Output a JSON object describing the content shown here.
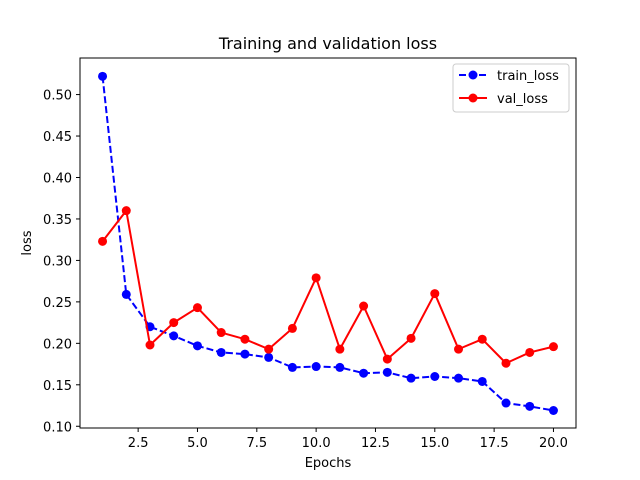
{
  "chart_data": {
    "type": "line",
    "title": "Training and validation loss",
    "xlabel": "Epochs",
    "ylabel": "loss",
    "xlim": [
      0.05,
      20.95
    ],
    "ylim": [
      0.0979,
      0.5441
    ],
    "xticks": [
      2.5,
      5.0,
      7.5,
      10.0,
      12.5,
      15.0,
      17.5,
      20.0
    ],
    "xtick_labels": [
      "2.5",
      "5.0",
      "7.5",
      "10.0",
      "12.5",
      "15.0",
      "17.5",
      "20.0"
    ],
    "yticks": [
      0.1,
      0.15,
      0.2,
      0.25,
      0.3,
      0.35,
      0.4,
      0.45,
      0.5
    ],
    "ytick_labels": [
      "0.10",
      "0.15",
      "0.20",
      "0.25",
      "0.30",
      "0.35",
      "0.40",
      "0.45",
      "0.50"
    ],
    "grid": false,
    "legend_position": "top-right",
    "x": [
      1,
      2,
      3,
      4,
      5,
      6,
      7,
      8,
      9,
      10,
      11,
      12,
      13,
      14,
      15,
      16,
      17,
      18,
      19,
      20
    ],
    "series": [
      {
        "name": "train_loss",
        "color": "#0000ff",
        "line_style": "dashed",
        "marker": "circle",
        "values": [
          0.522,
          0.259,
          0.22,
          0.209,
          0.197,
          0.189,
          0.187,
          0.183,
          0.171,
          0.172,
          0.171,
          0.164,
          0.165,
          0.158,
          0.16,
          0.158,
          0.154,
          0.128,
          0.124,
          0.119
        ]
      },
      {
        "name": "val_loss",
        "color": "#ff0000",
        "line_style": "solid",
        "marker": "circle",
        "values": [
          0.323,
          0.36,
          0.198,
          0.225,
          0.243,
          0.213,
          0.205,
          0.193,
          0.218,
          0.279,
          0.193,
          0.245,
          0.181,
          0.206,
          0.26,
          0.193,
          0.205,
          0.176,
          0.189,
          0.196
        ]
      }
    ]
  }
}
